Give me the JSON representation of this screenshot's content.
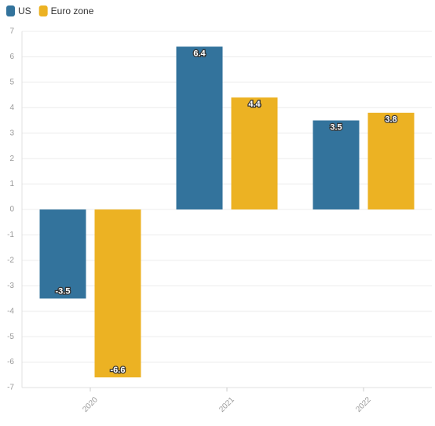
{
  "chart_data": {
    "type": "bar",
    "categories": [
      "2020",
      "2021",
      "2022"
    ],
    "series": [
      {
        "name": "US",
        "color": "#33739c",
        "values": [
          -3.5,
          6.4,
          3.5
        ]
      },
      {
        "name": "Euro zone",
        "color": "#ecb223",
        "values": [
          -6.6,
          4.4,
          3.8
        ]
      }
    ],
    "ylim": [
      -7,
      7
    ],
    "yticks": [
      -7,
      -6,
      -5,
      -4,
      -3,
      -2,
      -1,
      0,
      1,
      2,
      3,
      4,
      5,
      6,
      7
    ],
    "grid": true,
    "legend": "top-left"
  }
}
